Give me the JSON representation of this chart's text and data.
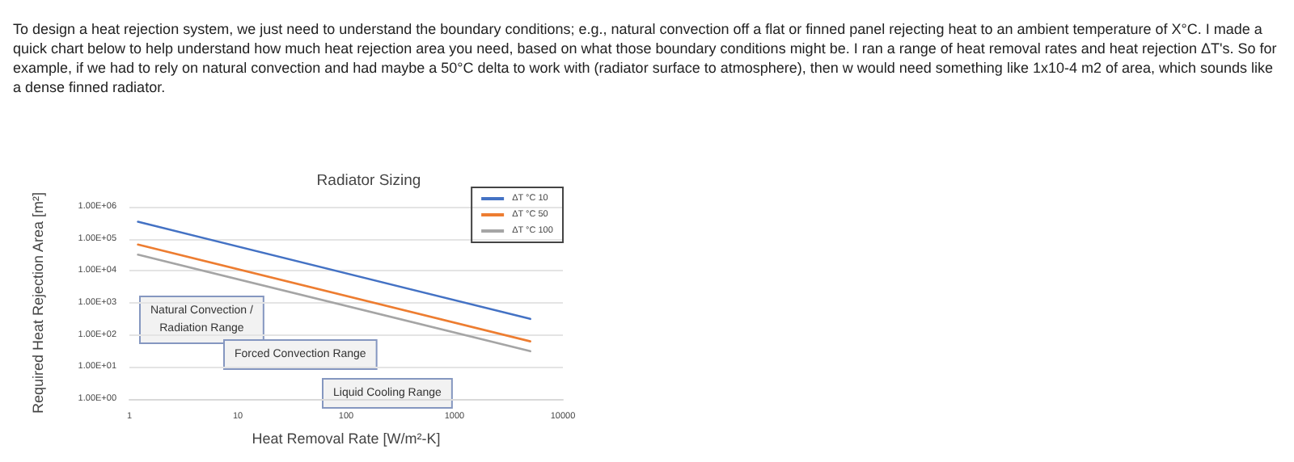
{
  "chart_data": {
    "type": "line",
    "title": "Radiator Sizing",
    "xlabel": "Heat Removal Rate [W/m²-K]",
    "ylabel": "Required Heat Rejection Area [m²]",
    "annotations": [
      "To design a heat rejection system, we just need to understand the boundary conditions; e.g., natural convection off a flat or finned panel rejecting heat to an ambient temperature of X°C.  I made a quick chart below to help understand how much heat rejection area you need, based on what those boundary conditions might be.  I ran a range of heat removal rates and heat rejection ΔT's.  So for example, if we had to rely on natural convection and had maybe a 50°C delta to work with (radiator surface to atmosphere), then w would need something like 1x10-4 m2 of area, which sounds like a dense finned radiator.",
      "Natural Convection / Radiation Range",
      "Forced Convection Range",
      "Liquid Cooling Range"
    ],
    "x": [
      1.2,
      5000
    ],
    "series": [
      {
        "name": "ΔT °C 10",
        "color": "#4472c4",
        "values": [
          340000,
          316
        ]
      },
      {
        "name": "ΔT °C 50",
        "color": "#ed7d31",
        "values": [
          66000,
          63
        ]
      },
      {
        "name": "ΔT °C 100",
        "color": "#a5a5a5",
        "values": [
          32000,
          31
        ]
      }
    ],
    "log": "xy",
    "xlim": [
      1,
      10000
    ],
    "xticks": [
      1,
      10,
      100,
      1000,
      10000
    ],
    "ylim": [
      1,
      1000000
    ],
    "yticks": [
      {
        "value": 1,
        "label": "1.00E+00"
      },
      {
        "value": 10,
        "label": "1.00E+01"
      },
      {
        "value": 100,
        "label": "1.00E+02"
      },
      {
        "value": 1000,
        "label": "1.00E+03"
      },
      {
        "value": 10000,
        "label": "1.00E+04"
      },
      {
        "value": 100000,
        "label": "1.00E+05"
      },
      {
        "value": 1000000,
        "label": "1.00E+06"
      }
    ],
    "grid": "y",
    "legend": "top right",
    "marker": "none",
    "line_style": "solid"
  }
}
